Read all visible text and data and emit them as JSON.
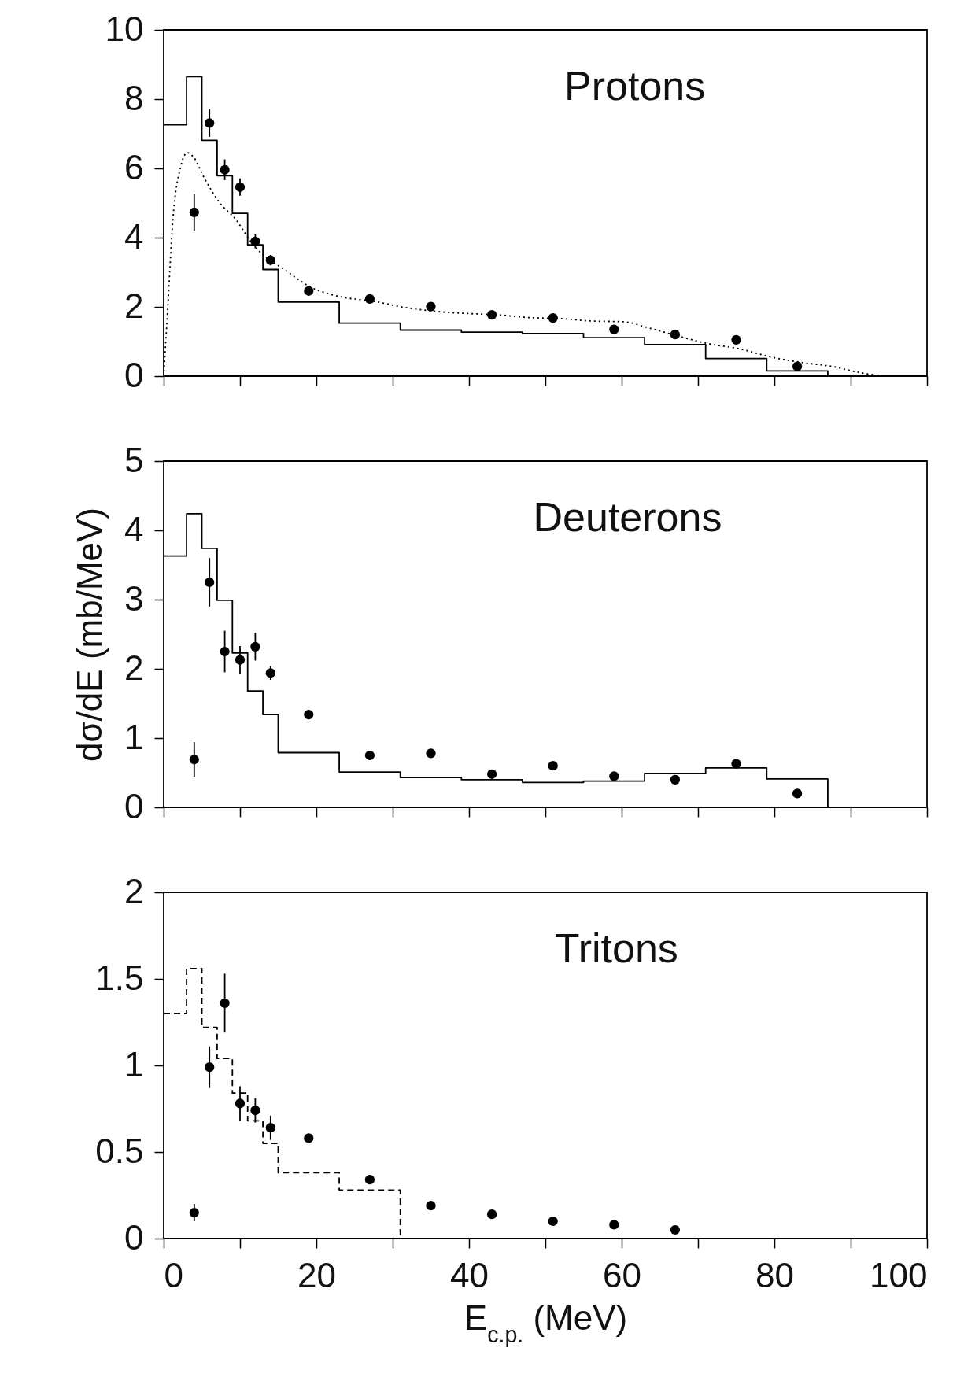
{
  "chart_data": [
    {
      "type": "scatter",
      "title": "Protons",
      "xlim": [
        0,
        100
      ],
      "xticks": [
        0,
        {
          "value": 10,
          "label": null
        },
        20,
        {
          "value": 30,
          "label": null
        },
        40,
        {
          "value": 50,
          "label": null
        },
        60,
        {
          "value": 70,
          "label": null
        },
        80,
        {
          "value": 90,
          "label": null
        },
        100
      ],
      "ylim": [
        0,
        10
      ],
      "yticks": [
        0,
        2,
        4,
        6,
        8,
        10
      ],
      "tick_labels": "y",
      "grid": false,
      "series": [
        {
          "type": "histogram",
          "color": "#000000",
          "line_style": "solid",
          "bins": [
            0,
            3,
            5,
            7,
            9,
            11,
            13,
            15,
            23,
            31,
            39,
            47,
            55,
            63,
            71,
            79,
            87
          ],
          "values": [
            7.26,
            8.65,
            6.81,
            5.79,
            4.7,
            3.79,
            3.08,
            2.14,
            1.53,
            1.33,
            1.27,
            1.23,
            1.11,
            0.91,
            0.51,
            0.15
          ]
        },
        {
          "type": "line",
          "color": "#000000",
          "line_style": "dotted",
          "x": [
            0,
            0.5,
            1.2,
            2.2,
            3.1,
            3.9,
            5.3,
            7.4,
            9.4,
            11.5,
            13.5,
            15.6,
            19.1,
            23.2,
            27.3,
            31.4,
            35.6,
            39.7,
            43.8,
            47.9,
            52.1,
            56.2,
            60.3,
            63.1,
            67.2,
            71.3,
            75.4,
            79.6,
            83.7,
            87.8,
            90.6,
            94
          ],
          "values": [
            0,
            1.84,
            4.5,
            6.03,
            6.45,
            6.33,
            5.73,
            4.99,
            4.54,
            3.86,
            3.41,
            3.11,
            2.59,
            2.29,
            2.17,
            1.99,
            1.87,
            1.81,
            1.77,
            1.69,
            1.66,
            1.59,
            1.57,
            1.42,
            1.17,
            0.94,
            0.79,
            0.55,
            0.39,
            0.27,
            0.13,
            0
          ]
        },
        {
          "type": "scatter",
          "color": "#000000",
          "marker": "circle",
          "x": [
            4,
            6,
            8,
            10,
            12,
            14,
            19,
            27,
            35,
            43,
            51,
            59,
            67,
            75,
            83
          ],
          "values": [
            4.73,
            7.31,
            5.96,
            5.46,
            3.89,
            3.35,
            2.46,
            2.23,
            2.01,
            1.77,
            1.68,
            1.35,
            1.2,
            1.05,
            0.28
          ],
          "errors": [
            0.53,
            0.4,
            0.3,
            0.25,
            0.2,
            0.15,
            null,
            null,
            null,
            null,
            null,
            null,
            null,
            null,
            null
          ]
        }
      ]
    },
    {
      "type": "scatter",
      "title": "Deuterons",
      "ylabel": "dσ/dE (mb/MeV)",
      "xlim": [
        0,
        100
      ],
      "xticks": [
        0,
        {
          "value": 10,
          "label": null
        },
        20,
        {
          "value": 30,
          "label": null
        },
        40,
        {
          "value": 50,
          "label": null
        },
        60,
        {
          "value": 70,
          "label": null
        },
        80,
        {
          "value": 90,
          "label": null
        },
        100
      ],
      "ylim": [
        0,
        5
      ],
      "yticks": [
        0,
        1,
        2,
        3,
        4,
        5
      ],
      "tick_labels": "y",
      "grid": false,
      "series": [
        {
          "type": "histogram",
          "color": "#000000",
          "line_style": "solid",
          "bins": [
            0,
            3,
            5,
            7,
            9,
            11,
            13,
            15,
            23,
            31,
            39,
            47,
            55,
            63,
            71,
            79,
            87
          ],
          "values": [
            3.63,
            4.24,
            3.74,
            2.99,
            2.23,
            1.68,
            1.34,
            0.79,
            0.51,
            0.43,
            0.4,
            0.36,
            0.38,
            0.49,
            0.57,
            0.41
          ]
        },
        {
          "type": "scatter",
          "color": "#000000",
          "marker": "circle",
          "x": [
            4,
            6,
            8,
            10,
            12,
            14,
            19,
            27,
            35,
            43,
            51,
            59,
            67,
            75,
            83
          ],
          "values": [
            0.69,
            3.25,
            2.25,
            2.13,
            2.32,
            1.94,
            1.34,
            0.75,
            0.78,
            0.48,
            0.6,
            0.45,
            0.4,
            0.63,
            0.2
          ],
          "errors": [
            0.25,
            0.35,
            0.3,
            0.2,
            0.2,
            0.1,
            null,
            null,
            null,
            null,
            null,
            null,
            null,
            null,
            null
          ]
        }
      ]
    },
    {
      "type": "scatter",
      "title": "Tritons",
      "xlabel": "E$_{c.p.}$ (MeV)",
      "xlim": [
        0,
        100
      ],
      "xticks": [
        0,
        {
          "value": 10,
          "label": null
        },
        20,
        {
          "value": 30,
          "label": null
        },
        40,
        {
          "value": 50,
          "label": null
        },
        60,
        {
          "value": 70,
          "label": null
        },
        80,
        {
          "value": 90,
          "label": null
        },
        100
      ],
      "ylim": [
        0,
        2
      ],
      "yticks": [
        0,
        0.5,
        1,
        1.5,
        2
      ],
      "grid": false,
      "series": [
        {
          "type": "histogram",
          "color": "#000000",
          "line_style": "dashed",
          "bins": [
            0,
            3,
            5,
            7,
            9,
            11,
            13,
            15,
            23,
            31
          ],
          "values": [
            1.3,
            1.56,
            1.22,
            1.04,
            0.84,
            0.68,
            0.55,
            0.38,
            0.28
          ]
        },
        {
          "type": "scatter",
          "color": "#000000",
          "marker": "circle",
          "x": [
            4,
            6,
            8,
            10,
            12,
            14,
            19,
            27,
            35,
            43,
            51,
            59,
            67
          ],
          "values": [
            0.15,
            0.99,
            1.36,
            0.78,
            0.74,
            0.64,
            0.58,
            0.34,
            0.19,
            0.14,
            0.1,
            0.08,
            0.05
          ],
          "errors": [
            0.05,
            0.12,
            0.17,
            0.1,
            0.07,
            0.07,
            null,
            null,
            null,
            null,
            null,
            null,
            null
          ]
        }
      ]
    }
  ]
}
